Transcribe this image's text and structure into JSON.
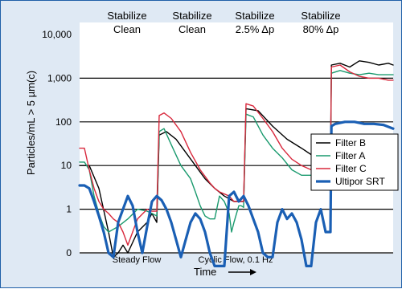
{
  "chart_data": {
    "type": "line",
    "xlabel": "Time",
    "ylabel": "Particles/mL > 5 µm(c)",
    "y_scale": "log",
    "y_ticks": [
      "10,000",
      "1,000",
      "100",
      "10",
      "1",
      "0"
    ],
    "stages": [
      {
        "line1": "Stabilize",
        "line2": "Clean"
      },
      {
        "line1": "Stabilize",
        "line2": "Clean"
      },
      {
        "line1": "Stabilize",
        "line2": "2.5% Δp"
      },
      {
        "line1": "Stabilize",
        "line2": "80% Δp"
      }
    ],
    "phases": [
      "Steady Flow",
      "Cyclic Flow, 0.1 Hz"
    ],
    "legend_position": "right",
    "series": [
      {
        "name": "Filter B",
        "color": "#000000",
        "width": 1.4,
        "points": [
          [
            0,
            10
          ],
          [
            2,
            10
          ],
          [
            4,
            3
          ],
          [
            6,
            0.3
          ],
          [
            7,
            0.08
          ],
          [
            8,
            0.1
          ],
          [
            9,
            0.15
          ],
          [
            10,
            0.1
          ],
          [
            12,
            0.3
          ],
          [
            14,
            0.5
          ],
          [
            15,
            0.8
          ],
          [
            16,
            0.5
          ],
          [
            16.5,
            50
          ],
          [
            18,
            60
          ],
          [
            20,
            40
          ],
          [
            22,
            20
          ],
          [
            24,
            10
          ],
          [
            26,
            5
          ],
          [
            28,
            3
          ],
          [
            30,
            2
          ],
          [
            32,
            1.5
          ],
          [
            34,
            1.5
          ],
          [
            34.5,
            200
          ],
          [
            37,
            180
          ],
          [
            40,
            80
          ],
          [
            43,
            40
          ],
          [
            46,
            25
          ],
          [
            49,
            15
          ],
          [
            51,
            11
          ],
          [
            52,
            10
          ],
          [
            52.2,
            2000
          ],
          [
            54,
            2200
          ],
          [
            56,
            1800
          ],
          [
            58,
            2500
          ],
          [
            60,
            2300
          ],
          [
            62,
            2000
          ],
          [
            64,
            2200
          ],
          [
            65,
            2000
          ]
        ]
      },
      {
        "name": "Filter A",
        "color": "#1a9a6e",
        "width": 1.4,
        "points": [
          [
            0,
            12
          ],
          [
            1,
            12
          ],
          [
            2,
            8
          ],
          [
            3,
            2
          ],
          [
            4,
            0.8
          ],
          [
            5,
            0.4
          ],
          [
            6,
            0.3
          ],
          [
            8,
            0.4
          ],
          [
            10,
            0.6
          ],
          [
            12,
            1
          ],
          [
            14,
            0.9
          ],
          [
            15,
            0.8
          ],
          [
            16,
            0.7
          ],
          [
            16.5,
            60
          ],
          [
            17.5,
            70
          ],
          [
            19,
            30
          ],
          [
            21,
            10
          ],
          [
            23,
            5
          ],
          [
            24,
            2.5
          ],
          [
            25,
            1.2
          ],
          [
            26,
            0.7
          ],
          [
            27,
            0.6
          ],
          [
            28,
            0.6
          ],
          [
            29,
            2
          ],
          [
            30,
            1.5
          ],
          [
            31,
            0.8
          ],
          [
            31.5,
            0.3
          ],
          [
            32,
            0.5
          ],
          [
            33,
            1.2
          ],
          [
            33.5,
            1.2
          ],
          [
            34,
            1.1
          ],
          [
            34.5,
            150
          ],
          [
            36,
            130
          ],
          [
            38,
            50
          ],
          [
            40,
            25
          ],
          [
            42,
            15
          ],
          [
            44,
            8
          ],
          [
            46,
            6
          ],
          [
            48,
            6
          ],
          [
            50,
            5
          ],
          [
            52,
            5
          ],
          [
            52.2,
            1300
          ],
          [
            54,
            1500
          ],
          [
            56,
            1300
          ],
          [
            58,
            1200
          ],
          [
            60,
            1300
          ],
          [
            62,
            1200
          ],
          [
            64,
            1200
          ],
          [
            65,
            1200
          ]
        ]
      },
      {
        "name": "Filter C",
        "color": "#d8283c",
        "width": 1.4,
        "points": [
          [
            0,
            25
          ],
          [
            1,
            25
          ],
          [
            2,
            8
          ],
          [
            3,
            3
          ],
          [
            4,
            1.5
          ],
          [
            5,
            1
          ],
          [
            6,
            0.8
          ],
          [
            7,
            0.6
          ],
          [
            8,
            0.5
          ],
          [
            9,
            0.3
          ],
          [
            10,
            0.15
          ],
          [
            11,
            0.3
          ],
          [
            12,
            0.6
          ],
          [
            14,
            1
          ],
          [
            15,
            0.9
          ],
          [
            16,
            0.9
          ],
          [
            16.5,
            140
          ],
          [
            17.5,
            160
          ],
          [
            19,
            120
          ],
          [
            21,
            60
          ],
          [
            23,
            20
          ],
          [
            25,
            8
          ],
          [
            27,
            4
          ],
          [
            28,
            3
          ],
          [
            29,
            2.5
          ],
          [
            31,
            2
          ],
          [
            32,
            1.5
          ],
          [
            33,
            1.5
          ],
          [
            34,
            1.5
          ],
          [
            34.5,
            260
          ],
          [
            36,
            230
          ],
          [
            38,
            120
          ],
          [
            40,
            60
          ],
          [
            42,
            25
          ],
          [
            44,
            14
          ],
          [
            46,
            10
          ],
          [
            48,
            8
          ],
          [
            50,
            7
          ],
          [
            52,
            6
          ],
          [
            52.2,
            1800
          ],
          [
            54,
            2000
          ],
          [
            56,
            1400
          ],
          [
            58,
            1100
          ],
          [
            60,
            1000
          ],
          [
            62,
            1000
          ],
          [
            64,
            900
          ],
          [
            65,
            900
          ]
        ]
      },
      {
        "name": "Ultipor SRT",
        "color": "#1a5fb4",
        "width": 3.2,
        "points": [
          [
            0,
            3.5
          ],
          [
            1,
            3.5
          ],
          [
            2,
            3
          ],
          [
            3,
            1.5
          ],
          [
            4,
            0.7
          ],
          [
            5,
            0.3
          ],
          [
            6,
            0.1
          ],
          [
            7,
            0.08
          ],
          [
            8,
            0.5
          ],
          [
            9,
            1
          ],
          [
            10,
            2
          ],
          [
            11,
            1.2
          ],
          [
            12,
            0.3
          ],
          [
            13,
            0.1
          ],
          [
            14,
            0.4
          ],
          [
            15,
            1.5
          ],
          [
            16,
            2
          ],
          [
            17,
            1.6
          ],
          [
            18,
            1
          ],
          [
            19,
            0.5
          ],
          [
            20,
            0.2
          ],
          [
            21,
            0.08
          ],
          [
            22,
            0.2
          ],
          [
            23,
            0.5
          ],
          [
            24,
            0.8
          ],
          [
            25,
            0.6
          ],
          [
            26,
            0.3
          ],
          [
            27,
            0.1
          ],
          [
            28,
            0.05
          ],
          [
            29,
            0.05
          ],
          [
            30,
            0.05
          ],
          [
            31,
            2
          ],
          [
            32,
            2.5
          ],
          [
            33,
            1.5
          ],
          [
            34,
            2
          ],
          [
            35,
            1.2
          ],
          [
            36,
            0.6
          ],
          [
            37,
            0.3
          ],
          [
            38,
            0.1
          ],
          [
            39,
            0.08
          ],
          [
            40,
            0.08
          ],
          [
            41,
            0.5
          ],
          [
            42,
            1
          ],
          [
            43,
            0.6
          ],
          [
            44,
            0.8
          ],
          [
            45,
            0.5
          ],
          [
            46,
            0.2
          ],
          [
            47,
            0.05
          ],
          [
            48,
            0.05
          ],
          [
            49,
            0.5
          ],
          [
            50,
            1
          ],
          [
            51,
            0.3
          ],
          [
            52,
            0.3
          ],
          [
            52.2,
            80
          ],
          [
            53,
            90
          ],
          [
            55,
            100
          ],
          [
            57,
            100
          ],
          [
            59,
            90
          ],
          [
            61,
            90
          ],
          [
            63,
            85
          ],
          [
            65,
            70
          ]
        ]
      }
    ]
  }
}
